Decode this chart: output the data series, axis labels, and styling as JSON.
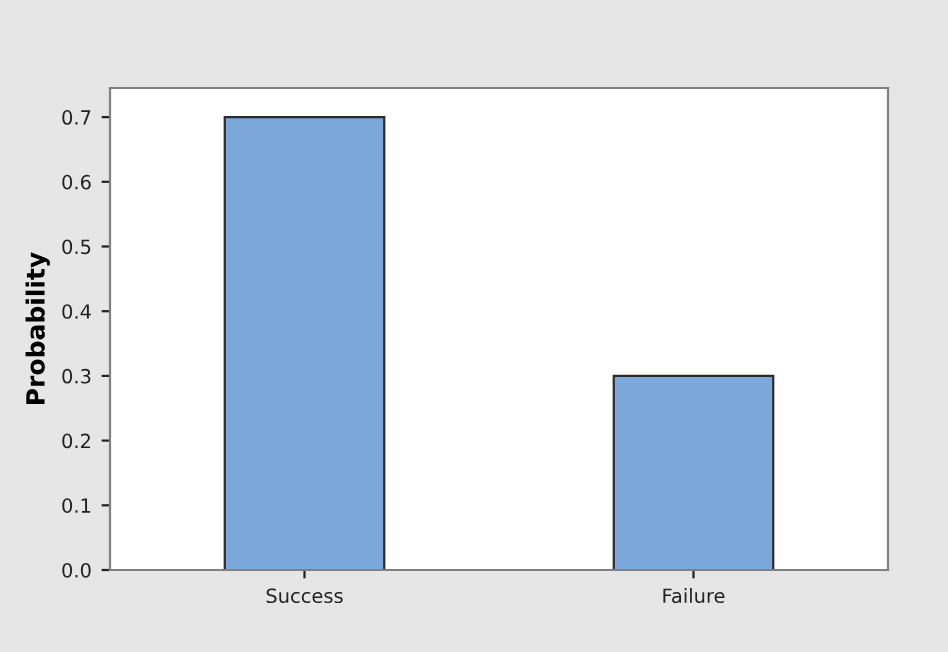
{
  "chart_data": {
    "type": "bar",
    "ylabel": "Probability",
    "categories": [
      "Success",
      "Failure"
    ],
    "values": [
      0.7,
      0.3
    ],
    "color": "#7ba7db",
    "ylim": [
      0,
      0.745
    ],
    "yticks": [
      {
        "value": 0,
        "label": "0.0"
      },
      0.1,
      0.2,
      0.3,
      0.4,
      0.5,
      0.6,
      0.7
    ],
    "grid": false
  }
}
